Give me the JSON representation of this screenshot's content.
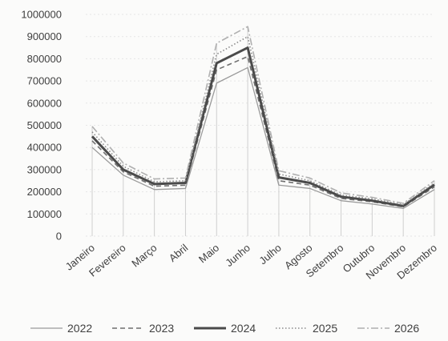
{
  "chart_data": {
    "type": "line",
    "title": "",
    "xlabel": "",
    "ylabel": "",
    "categories": [
      "Janeiro",
      "Fevereiro",
      "Março",
      "Abril",
      "Maio",
      "Junho",
      "Julho",
      "Agosto",
      "Setembro",
      "Outubro",
      "Novembro",
      "Dezembro"
    ],
    "y_ticks": [
      "0",
      "100000",
      "200000",
      "300000",
      "400000",
      "500000",
      "600000",
      "700000",
      "800000",
      "900000",
      "1000000"
    ],
    "ylim": [
      0,
      1000000
    ],
    "grid": true,
    "legend_position": "bottom",
    "series": [
      {
        "name": "2022",
        "style": "solid-thin",
        "color": "#9a9a9a",
        "values": [
          400000,
          275000,
          210000,
          215000,
          690000,
          760000,
          230000,
          215000,
          160000,
          145000,
          125000,
          210000
        ]
      },
      {
        "name": "2023",
        "style": "dashed",
        "color": "#6e6e6e",
        "values": [
          430000,
          290000,
          225000,
          230000,
          750000,
          810000,
          250000,
          230000,
          170000,
          155000,
          132000,
          222000
        ]
      },
      {
        "name": "2024",
        "style": "solid-thick",
        "color": "#4a4a4a",
        "values": [
          450000,
          300000,
          235000,
          240000,
          780000,
          850000,
          265000,
          240000,
          178000,
          160000,
          136000,
          232000
        ]
      },
      {
        "name": "2025",
        "style": "dotted",
        "color": "#8a8a8a",
        "values": [
          470000,
          315000,
          245000,
          250000,
          820000,
          900000,
          280000,
          250000,
          185000,
          168000,
          142000,
          240000
        ]
      },
      {
        "name": "2026",
        "style": "dash-dot",
        "color": "#b0b0b0",
        "values": [
          495000,
          330000,
          258000,
          262000,
          870000,
          945000,
          295000,
          262000,
          195000,
          175000,
          148000,
          250000
        ]
      }
    ]
  }
}
